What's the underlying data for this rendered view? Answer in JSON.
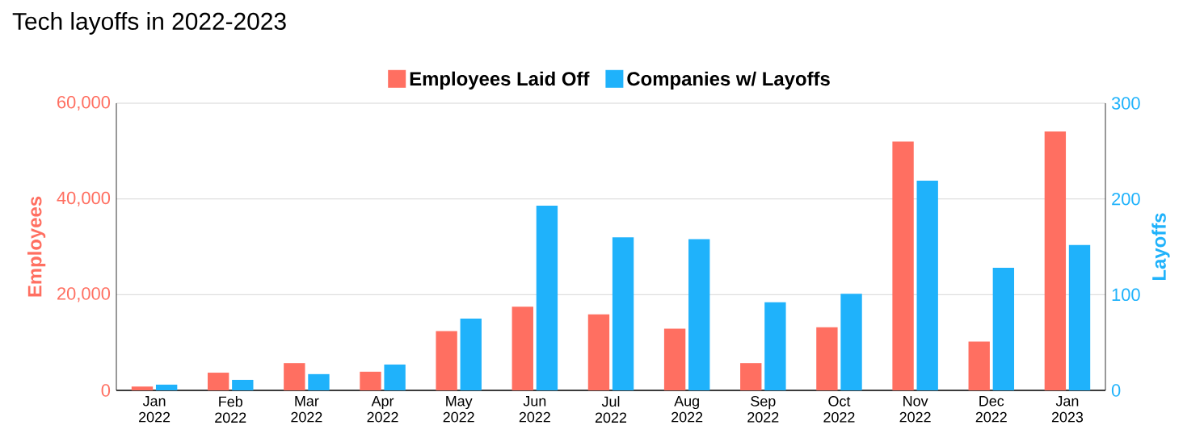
{
  "chart_data": {
    "type": "bar",
    "title": "Tech layoffs in 2022-2023",
    "ylabel": "Employees",
    "y2label": "Layoffs",
    "categories": [
      "Jan 2022",
      "Feb 2022",
      "Mar 2022",
      "Apr 2022",
      "May 2022",
      "Jun 2022",
      "Jul 2022",
      "Aug 2022",
      "Sep 2022",
      "Oct 2022",
      "Nov 2022",
      "Dec 2022",
      "Jan 2023"
    ],
    "series": [
      {
        "name": "Employees Laid Off",
        "color": "#ff6f61",
        "values": [
          800,
          3700,
          5700,
          3900,
          12400,
          17500,
          15900,
          12900,
          5700,
          13200,
          52000,
          10200,
          54100
        ]
      },
      {
        "name": "Companies w/ Layoffs",
        "color": "#1fb2fb",
        "axis": "y2",
        "values": [
          6,
          11,
          17,
          27,
          75,
          193,
          160,
          158,
          92,
          101,
          219,
          128,
          152
        ]
      }
    ],
    "ylim": [
      0,
      60000
    ],
    "yticks": [
      0,
      {
        "value": 20000,
        "label": "20,000"
      },
      {
        "value": 40000,
        "label": "40,000"
      },
      {
        "value": 60000,
        "label": "60,000"
      }
    ],
    "y2lim": [
      0,
      300
    ],
    "y2ticks": [
      0,
      100,
      200,
      300
    ],
    "grid": "y",
    "legend": "top"
  }
}
